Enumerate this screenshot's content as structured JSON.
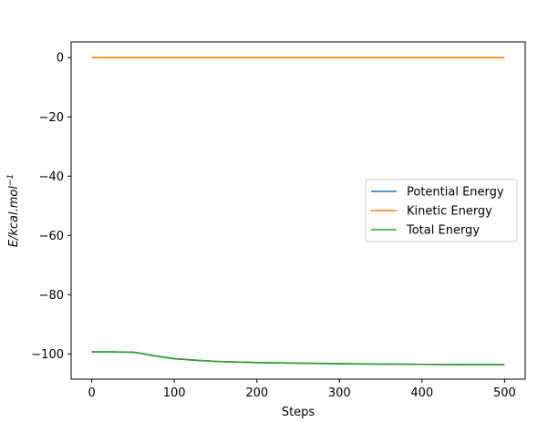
{
  "chart_data": {
    "type": "line",
    "title": "",
    "xlabel": "Steps",
    "ylabel": "E/kcal.mol",
    "ylabel_superscript": "−1",
    "xlim": [
      -25,
      525
    ],
    "ylim": [
      -108.5,
      5.3
    ],
    "xticks": [
      0,
      100,
      200,
      300,
      400,
      500
    ],
    "xtick_labels": [
      "0",
      "100",
      "200",
      "300",
      "400",
      "500"
    ],
    "yticks": [
      0,
      -20,
      -40,
      -60,
      -80,
      -100
    ],
    "ytick_labels": [
      "0",
      "−20",
      "−40",
      "−60",
      "−80",
      "−100"
    ],
    "grid": false,
    "legend_position": "center-right",
    "x": [
      0,
      25,
      50,
      60,
      75,
      100,
      125,
      150,
      200,
      250,
      300,
      350,
      400,
      450,
      500
    ],
    "series": [
      {
        "name": "Potential Energy",
        "color": "#1f77b4",
        "values": [
          -99.3,
          -99.3,
          -99.4,
          -99.8,
          -100.6,
          -101.6,
          -102.1,
          -102.5,
          -102.9,
          -103.1,
          -103.3,
          -103.4,
          -103.5,
          -103.6,
          -103.6
        ]
      },
      {
        "name": "Kinetic Energy",
        "color": "#ff7f0e",
        "values": [
          0,
          0,
          0,
          0,
          0,
          0,
          0,
          0,
          0,
          0,
          0,
          0,
          0,
          0,
          0
        ]
      },
      {
        "name": "Total Energy",
        "color": "#2ca02c",
        "values": [
          -99.3,
          -99.3,
          -99.4,
          -99.8,
          -100.6,
          -101.6,
          -102.1,
          -102.5,
          -102.9,
          -103.1,
          -103.3,
          -103.4,
          -103.5,
          -103.6,
          -103.6
        ]
      }
    ]
  }
}
